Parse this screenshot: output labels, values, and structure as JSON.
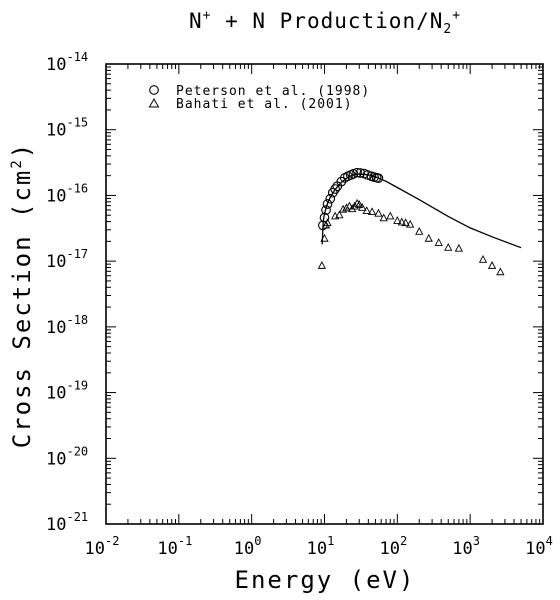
{
  "chart_data": {
    "type": "scatter",
    "title": {
      "prefix": "N",
      "prefix_sup": "+",
      "middle": " + N Production/N",
      "sub": "2",
      "sup": "+"
    },
    "xlabel": "Energy (eV)",
    "ylabel": "Cross Section (cm",
    "ylabel_sup": "2",
    "ylabel_suffix": ")",
    "x_scale": "log",
    "y_scale": "log",
    "xlim": [
      0.01,
      10000
    ],
    "ylim": [
      1e-21,
      1e-14
    ],
    "grid": false,
    "legend_position": "top-left",
    "x_ticks": [
      {
        "base": "10",
        "exp": "-2",
        "value": 0.01
      },
      {
        "base": "10",
        "exp": "-1",
        "value": 0.1
      },
      {
        "base": "10",
        "exp": "0",
        "value": 1
      },
      {
        "base": "10",
        "exp": "1",
        "value": 10
      },
      {
        "base": "10",
        "exp": "2",
        "value": 100
      },
      {
        "base": "10",
        "exp": "3",
        "value": 1000
      },
      {
        "base": "10",
        "exp": "4",
        "value": 10000
      }
    ],
    "y_ticks": [
      {
        "base": "10",
        "exp": "-21",
        "value": 1e-21
      },
      {
        "base": "10",
        "exp": "-20",
        "value": 1e-20
      },
      {
        "base": "10",
        "exp": "-19",
        "value": 1e-19
      },
      {
        "base": "10",
        "exp": "-18",
        "value": 1e-18
      },
      {
        "base": "10",
        "exp": "-17",
        "value": 1e-17
      },
      {
        "base": "10",
        "exp": "-16",
        "value": 1e-16
      },
      {
        "base": "10",
        "exp": "-15",
        "value": 1e-15
      },
      {
        "base": "10",
        "exp": "-14",
        "value": 1e-14
      }
    ],
    "series": [
      {
        "name": "Peterson et al. (1998)",
        "marker": "circle",
        "x": [
          9.5,
          10,
          10.5,
          11,
          12,
          13,
          14,
          15,
          17,
          19,
          21,
          23,
          25,
          28,
          31,
          35,
          39,
          44,
          48,
          52,
          55
        ],
        "y": [
          3.5e-17,
          4.6e-17,
          6e-17,
          7.4e-17,
          8.9e-17,
          1.1e-16,
          1.25e-16,
          1.38e-16,
          1.62e-16,
          1.85e-16,
          1.96e-16,
          2.05e-16,
          2.13e-16,
          2.22e-16,
          2.2e-16,
          2.15e-16,
          2.05e-16,
          1.96e-16,
          1.9e-16,
          1.86e-16,
          1.83e-16
        ]
      },
      {
        "name": "Bahati et al. (2001)",
        "marker": "triangle",
        "x": [
          9.2,
          10,
          10.5,
          11,
          14,
          16,
          18,
          20,
          22,
          24,
          26,
          28,
          30,
          33,
          38,
          45,
          55,
          65,
          80,
          100,
          115,
          130,
          150,
          200,
          270,
          370,
          500,
          700,
          1500,
          2000,
          2600
        ],
        "y": [
          8.5e-18,
          2.2e-17,
          3.5e-17,
          3.8e-17,
          4.8e-17,
          5e-17,
          6.1e-17,
          6.4e-17,
          6.8e-17,
          6.2e-17,
          6.8e-17,
          7.5e-17,
          7.2e-17,
          6.5e-17,
          5.8e-17,
          5.6e-17,
          5.3e-17,
          4.5e-17,
          4.8e-17,
          4.1e-17,
          3.9e-17,
          3.8e-17,
          3.6e-17,
          2.8e-17,
          2.2e-17,
          1.9e-17,
          1.6e-17,
          1.55e-17,
          1.05e-17,
          8.5e-18,
          6.8e-18
        ]
      },
      {
        "name": "",
        "marker": "line",
        "x": [
          9.3,
          9.6,
          10,
          11,
          12,
          14,
          17,
          20,
          25,
          30,
          40,
          50,
          70,
          100,
          200,
          500,
          1000,
          2000,
          5000
        ],
        "y": [
          1.8e-17,
          4e-17,
          5.3e-17,
          7.6e-17,
          9.4e-17,
          1.23e-16,
          1.58e-16,
          1.82e-16,
          2.08e-16,
          2.12e-16,
          2.06e-16,
          1.92e-16,
          1.64e-16,
          1.32e-16,
          8.6e-17,
          4.8e-17,
          3.2e-17,
          2.35e-17,
          1.6e-17
        ]
      }
    ]
  }
}
